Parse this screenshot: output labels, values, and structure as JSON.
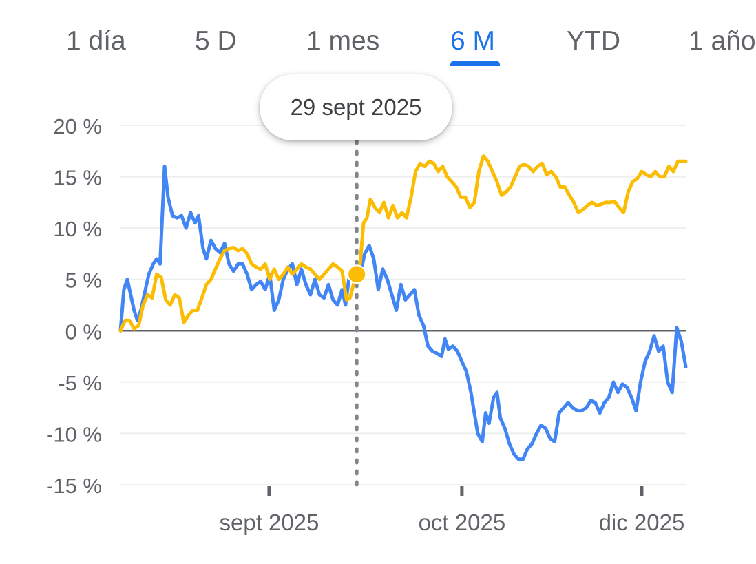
{
  "tabs": [
    {
      "label": "1 día",
      "active": false
    },
    {
      "label": "5 D",
      "active": false
    },
    {
      "label": "1 mes",
      "active": false
    },
    {
      "label": "6 M",
      "active": true
    },
    {
      "label": "YTD",
      "active": false
    },
    {
      "label": "1 año",
      "active": false
    }
  ],
  "tooltip": {
    "date": "29 sept 2025"
  },
  "colors": {
    "series_blue": "#4285f4",
    "series_yellow": "#fbbc04",
    "accent": "#1a73e8",
    "text": "#5f6368",
    "grid": "#eeeeee",
    "zero_line": "#5f6368"
  },
  "chart_data": {
    "type": "line",
    "y_ticks": [
      "20 %",
      "15 %",
      "10 %",
      "5 %",
      "0 %",
      "-5 %",
      "-10 %",
      "-15 %"
    ],
    "y_tick_values": [
      20,
      15,
      10,
      5,
      0,
      -5,
      -10,
      -15
    ],
    "ylim": [
      -15,
      20
    ],
    "x_ticks": [
      "sept 2025",
      "oct 2025",
      "dic 2025"
    ],
    "x_tick_positions": [
      0.263,
      0.604,
      0.922
    ],
    "grid": true,
    "x_domain": [
      0,
      1
    ],
    "hover_x": 0.418,
    "series": [
      {
        "color": "#4285f4",
        "points": [
          [
            0.0,
            0.0
          ],
          [
            0.006,
            4.0
          ],
          [
            0.012,
            5.0
          ],
          [
            0.018,
            3.5
          ],
          [
            0.024,
            2.0
          ],
          [
            0.03,
            1.0
          ],
          [
            0.036,
            2.0
          ],
          [
            0.042,
            3.5
          ],
          [
            0.05,
            5.5
          ],
          [
            0.058,
            6.5
          ],
          [
            0.064,
            7.0
          ],
          [
            0.07,
            6.5
          ],
          [
            0.078,
            16.0
          ],
          [
            0.084,
            13.0
          ],
          [
            0.092,
            11.2
          ],
          [
            0.1,
            11.0
          ],
          [
            0.108,
            11.2
          ],
          [
            0.116,
            10.0
          ],
          [
            0.124,
            11.5
          ],
          [
            0.132,
            10.5
          ],
          [
            0.138,
            11.2
          ],
          [
            0.146,
            8.0
          ],
          [
            0.152,
            7.0
          ],
          [
            0.16,
            8.8
          ],
          [
            0.168,
            8.0
          ],
          [
            0.176,
            7.6
          ],
          [
            0.184,
            8.5
          ],
          [
            0.192,
            6.5
          ],
          [
            0.2,
            5.8
          ],
          [
            0.208,
            6.5
          ],
          [
            0.216,
            6.5
          ],
          [
            0.224,
            5.5
          ],
          [
            0.232,
            4.0
          ],
          [
            0.24,
            4.5
          ],
          [
            0.248,
            4.8
          ],
          [
            0.256,
            4.0
          ],
          [
            0.264,
            5.5
          ],
          [
            0.272,
            2.0
          ],
          [
            0.28,
            3.0
          ],
          [
            0.288,
            5.0
          ],
          [
            0.296,
            6.0
          ],
          [
            0.304,
            6.5
          ],
          [
            0.312,
            4.5
          ],
          [
            0.32,
            6.0
          ],
          [
            0.328,
            4.5
          ],
          [
            0.336,
            3.5
          ],
          [
            0.344,
            5.0
          ],
          [
            0.352,
            3.5
          ],
          [
            0.36,
            3.2
          ],
          [
            0.368,
            4.5
          ],
          [
            0.376,
            3.0
          ],
          [
            0.384,
            2.5
          ],
          [
            0.392,
            4.0
          ],
          [
            0.398,
            2.5
          ],
          [
            0.404,
            5.0
          ],
          [
            0.41,
            5.5
          ],
          [
            0.418,
            5.5
          ],
          [
            0.426,
            6.0
          ],
          [
            0.432,
            7.5
          ],
          [
            0.44,
            8.3
          ],
          [
            0.448,
            7.0
          ],
          [
            0.456,
            4.0
          ],
          [
            0.464,
            6.0
          ],
          [
            0.472,
            5.0
          ],
          [
            0.48,
            3.5
          ],
          [
            0.488,
            2.0
          ],
          [
            0.496,
            4.5
          ],
          [
            0.504,
            3.0
          ],
          [
            0.512,
            3.5
          ],
          [
            0.52,
            4.0
          ],
          [
            0.528,
            1.5
          ],
          [
            0.536,
            0.5
          ],
          [
            0.544,
            -1.5
          ],
          [
            0.552,
            -2.0
          ],
          [
            0.56,
            -2.2
          ],
          [
            0.568,
            -2.5
          ],
          [
            0.574,
            -0.8
          ],
          [
            0.58,
            -1.8
          ],
          [
            0.588,
            -1.5
          ],
          [
            0.596,
            -2.0
          ],
          [
            0.604,
            -3.0
          ],
          [
            0.612,
            -4.0
          ],
          [
            0.62,
            -6.0
          ],
          [
            0.626,
            -8.0
          ],
          [
            0.632,
            -10.0
          ],
          [
            0.64,
            -10.8
          ],
          [
            0.646,
            -8.0
          ],
          [
            0.652,
            -9.0
          ],
          [
            0.66,
            -6.5
          ],
          [
            0.666,
            -6.0
          ],
          [
            0.672,
            -8.5
          ],
          [
            0.68,
            -9.5
          ],
          [
            0.688,
            -11.0
          ],
          [
            0.696,
            -12.0
          ],
          [
            0.704,
            -12.5
          ],
          [
            0.712,
            -12.5
          ],
          [
            0.72,
            -11.5
          ],
          [
            0.728,
            -11.0
          ],
          [
            0.736,
            -10.0
          ],
          [
            0.744,
            -9.2
          ],
          [
            0.752,
            -9.5
          ],
          [
            0.76,
            -10.5
          ],
          [
            0.768,
            -10.8
          ],
          [
            0.776,
            -8.0
          ],
          [
            0.784,
            -7.5
          ],
          [
            0.792,
            -7.0
          ],
          [
            0.8,
            -7.5
          ],
          [
            0.808,
            -7.8
          ],
          [
            0.816,
            -7.8
          ],
          [
            0.824,
            -7.5
          ],
          [
            0.832,
            -6.8
          ],
          [
            0.84,
            -7.0
          ],
          [
            0.848,
            -8.0
          ],
          [
            0.856,
            -7.0
          ],
          [
            0.864,
            -6.5
          ],
          [
            0.872,
            -5.0
          ],
          [
            0.88,
            -6.0
          ],
          [
            0.888,
            -5.2
          ],
          [
            0.896,
            -5.5
          ],
          [
            0.904,
            -6.5
          ],
          [
            0.912,
            -7.8
          ],
          [
            0.92,
            -5.0
          ],
          [
            0.928,
            -3.0
          ],
          [
            0.936,
            -2.0
          ],
          [
            0.944,
            -0.5
          ],
          [
            0.952,
            -2.0
          ],
          [
            0.96,
            -1.5
          ],
          [
            0.968,
            -5.0
          ],
          [
            0.976,
            -6.0
          ],
          [
            0.984,
            0.3
          ],
          [
            0.992,
            -1.0
          ],
          [
            1.0,
            -3.5
          ]
        ]
      },
      {
        "color": "#fbbc04",
        "points": [
          [
            0.0,
            0.0
          ],
          [
            0.008,
            1.0
          ],
          [
            0.016,
            1.0
          ],
          [
            0.024,
            0.2
          ],
          [
            0.032,
            0.5
          ],
          [
            0.04,
            2.5
          ],
          [
            0.048,
            3.5
          ],
          [
            0.056,
            3.2
          ],
          [
            0.064,
            5.5
          ],
          [
            0.072,
            5.2
          ],
          [
            0.08,
            3.0
          ],
          [
            0.088,
            2.5
          ],
          [
            0.096,
            3.5
          ],
          [
            0.104,
            3.2
          ],
          [
            0.112,
            0.8
          ],
          [
            0.12,
            1.5
          ],
          [
            0.128,
            2.0
          ],
          [
            0.136,
            2.0
          ],
          [
            0.144,
            3.2
          ],
          [
            0.152,
            4.5
          ],
          [
            0.16,
            5.0
          ],
          [
            0.168,
            6.0
          ],
          [
            0.176,
            7.0
          ],
          [
            0.184,
            7.8
          ],
          [
            0.192,
            8.0
          ],
          [
            0.2,
            8.1
          ],
          [
            0.208,
            7.8
          ],
          [
            0.216,
            8.0
          ],
          [
            0.224,
            7.5
          ],
          [
            0.232,
            6.5
          ],
          [
            0.24,
            6.2
          ],
          [
            0.248,
            6.0
          ],
          [
            0.256,
            6.5
          ],
          [
            0.264,
            5.0
          ],
          [
            0.272,
            6.0
          ],
          [
            0.28,
            5.0
          ],
          [
            0.288,
            5.5
          ],
          [
            0.296,
            6.2
          ],
          [
            0.304,
            5.5
          ],
          [
            0.312,
            6.0
          ],
          [
            0.32,
            6.5
          ],
          [
            0.328,
            6.2
          ],
          [
            0.336,
            6.0
          ],
          [
            0.344,
            5.5
          ],
          [
            0.352,
            5.0
          ],
          [
            0.36,
            5.5
          ],
          [
            0.368,
            6.0
          ],
          [
            0.376,
            6.5
          ],
          [
            0.384,
            6.2
          ],
          [
            0.392,
            5.8
          ],
          [
            0.4,
            3.0
          ],
          [
            0.406,
            3.2
          ],
          [
            0.412,
            4.5
          ],
          [
            0.418,
            5.5
          ],
          [
            0.424,
            6.5
          ],
          [
            0.43,
            10.5
          ],
          [
            0.436,
            11.0
          ],
          [
            0.442,
            12.8
          ],
          [
            0.45,
            12.0
          ],
          [
            0.458,
            11.5
          ],
          [
            0.466,
            12.5
          ],
          [
            0.474,
            11.0
          ],
          [
            0.482,
            12.2
          ],
          [
            0.49,
            11.0
          ],
          [
            0.498,
            11.5
          ],
          [
            0.506,
            11.0
          ],
          [
            0.514,
            13.0
          ],
          [
            0.522,
            15.5
          ],
          [
            0.53,
            16.3
          ],
          [
            0.538,
            16.0
          ],
          [
            0.546,
            16.5
          ],
          [
            0.554,
            16.3
          ],
          [
            0.562,
            15.5
          ],
          [
            0.57,
            16.0
          ],
          [
            0.578,
            15.0
          ],
          [
            0.586,
            14.5
          ],
          [
            0.594,
            14.0
          ],
          [
            0.602,
            13.0
          ],
          [
            0.61,
            13.0
          ],
          [
            0.618,
            12.0
          ],
          [
            0.626,
            12.5
          ],
          [
            0.634,
            15.5
          ],
          [
            0.642,
            17.0
          ],
          [
            0.65,
            16.5
          ],
          [
            0.658,
            15.5
          ],
          [
            0.666,
            14.5
          ],
          [
            0.674,
            13.2
          ],
          [
            0.682,
            13.5
          ],
          [
            0.69,
            14.0
          ],
          [
            0.698,
            15.0
          ],
          [
            0.706,
            16.0
          ],
          [
            0.714,
            16.2
          ],
          [
            0.722,
            16.0
          ],
          [
            0.73,
            15.5
          ],
          [
            0.738,
            16.0
          ],
          [
            0.746,
            16.3
          ],
          [
            0.754,
            15.2
          ],
          [
            0.762,
            15.5
          ],
          [
            0.77,
            15.0
          ],
          [
            0.778,
            14.0
          ],
          [
            0.786,
            14.0
          ],
          [
            0.794,
            13.2
          ],
          [
            0.802,
            12.5
          ],
          [
            0.81,
            11.5
          ],
          [
            0.818,
            11.8
          ],
          [
            0.826,
            12.2
          ],
          [
            0.834,
            12.5
          ],
          [
            0.842,
            12.2
          ],
          [
            0.85,
            12.3
          ],
          [
            0.858,
            12.5
          ],
          [
            0.866,
            12.5
          ],
          [
            0.874,
            12.6
          ],
          [
            0.882,
            12.0
          ],
          [
            0.89,
            11.5
          ],
          [
            0.898,
            13.5
          ],
          [
            0.906,
            14.5
          ],
          [
            0.914,
            14.8
          ],
          [
            0.922,
            15.5
          ],
          [
            0.93,
            15.2
          ],
          [
            0.938,
            15.0
          ],
          [
            0.946,
            15.5
          ],
          [
            0.954,
            15.0
          ],
          [
            0.962,
            15.0
          ],
          [
            0.97,
            16.0
          ],
          [
            0.978,
            15.5
          ],
          [
            0.986,
            16.5
          ],
          [
            1.0,
            16.5
          ]
        ]
      }
    ]
  }
}
